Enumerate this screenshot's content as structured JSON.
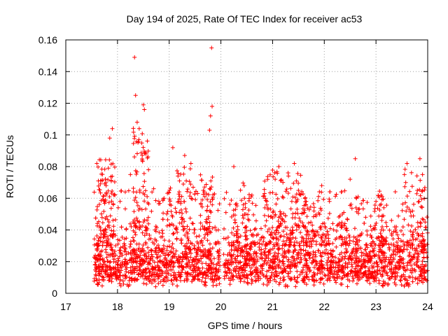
{
  "chart_data": {
    "type": "scatter",
    "title": "Day 194 of 2025, Rate Of TEC Index for receiver ac53",
    "xlabel": "GPS time / hours",
    "ylabel": "ROTI / TECUs",
    "xlim": [
      17,
      24
    ],
    "ylim": [
      0,
      0.16
    ],
    "xticks": [
      "17",
      "18",
      "19",
      "20",
      "21",
      "22",
      "23",
      "24"
    ],
    "yticks": [
      "0",
      "0.02",
      "0.04",
      "0.06",
      "0.08",
      "0.1",
      "0.12",
      "0.14",
      "0.16"
    ],
    "grid": true,
    "marker": "plus",
    "series_color": "#ff0000",
    "sample_points": [
      [
        17.6,
        0.082
      ],
      [
        17.7,
        0.071
      ],
      [
        17.78,
        0.068
      ],
      [
        17.85,
        0.098
      ],
      [
        17.9,
        0.104
      ],
      [
        17.95,
        0.062
      ],
      [
        18.05,
        0.058
      ],
      [
        18.15,
        0.064
      ],
      [
        18.25,
        0.075
      ],
      [
        18.33,
        0.149
      ],
      [
        18.35,
        0.125
      ],
      [
        18.38,
        0.108
      ],
      [
        18.42,
        0.104
      ],
      [
        18.5,
        0.119
      ],
      [
        18.52,
        0.116
      ],
      [
        18.55,
        0.088
      ],
      [
        18.6,
        0.078
      ],
      [
        18.7,
        0.066
      ],
      [
        18.8,
        0.058
      ],
      [
        18.9,
        0.06
      ],
      [
        19.07,
        0.092
      ],
      [
        19.2,
        0.071
      ],
      [
        19.3,
        0.087
      ],
      [
        19.42,
        0.082
      ],
      [
        19.55,
        0.063
      ],
      [
        19.68,
        0.064
      ],
      [
        19.78,
        0.103
      ],
      [
        19.8,
        0.112
      ],
      [
        19.83,
        0.118
      ],
      [
        19.82,
        0.155
      ],
      [
        19.95,
        0.04
      ],
      [
        20.25,
        0.08
      ],
      [
        20.45,
        0.068
      ],
      [
        20.6,
        0.062
      ],
      [
        20.85,
        0.054
      ],
      [
        21.05,
        0.072
      ],
      [
        21.12,
        0.08
      ],
      [
        21.2,
        0.07
      ],
      [
        21.3,
        0.076
      ],
      [
        21.42,
        0.082
      ],
      [
        21.5,
        0.065
      ],
      [
        21.65,
        0.058
      ],
      [
        21.8,
        0.052
      ],
      [
        21.95,
        0.068
      ],
      [
        22.1,
        0.058
      ],
      [
        22.35,
        0.05
      ],
      [
        22.5,
        0.072
      ],
      [
        22.6,
        0.085
      ],
      [
        22.8,
        0.048
      ],
      [
        23.0,
        0.058
      ],
      [
        23.1,
        0.062
      ],
      [
        23.3,
        0.046
      ],
      [
        23.55,
        0.075
      ],
      [
        23.6,
        0.082
      ],
      [
        23.8,
        0.065
      ],
      [
        23.85,
        0.085
      ],
      [
        23.9,
        0.075
      ],
      [
        23.95,
        0.045
      ]
    ],
    "dense_band": {
      "x_start": 17.55,
      "x_end": 24.0,
      "y_min": 0.004,
      "y_max": 0.045,
      "y_typical": 0.018
    }
  }
}
